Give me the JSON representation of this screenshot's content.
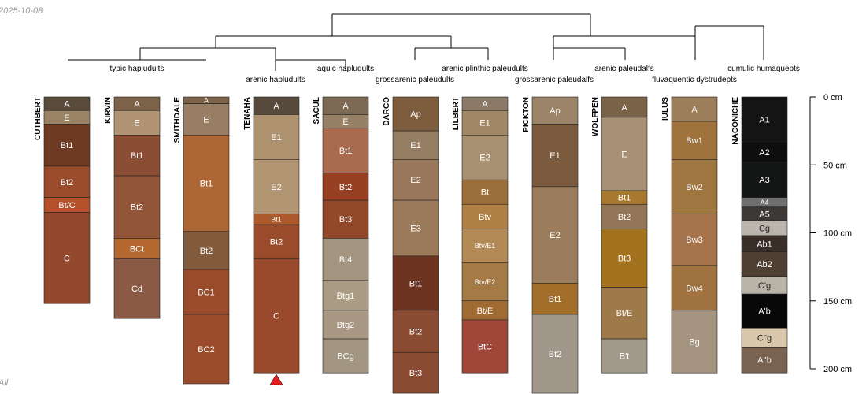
{
  "header": {
    "date": "2025-10-08",
    "corner_text": "All"
  },
  "colors": {
    "line": "#000000",
    "axis": "#000000",
    "marker": "#e41a1c"
  },
  "depth_axis": {
    "unit": "cm",
    "max": 205,
    "ticks": [
      {
        "value": 0,
        "label": "0 cm"
      },
      {
        "value": 50,
        "label": "50 cm"
      },
      {
        "value": 100,
        "label": "100 cm"
      },
      {
        "value": 150,
        "label": "150 cm"
      },
      {
        "value": 200,
        "label": "200 cm"
      }
    ]
  },
  "taxonomy_labels": [
    "typic hapludults",
    "arenic hapludults",
    "aquic hapludults",
    "grossarenic paleudults",
    "arenic plinthic paleudults",
    "grossarenic paleudalfs",
    "arenic paleudalfs",
    "fluvaquentic dystrudepts",
    "cumulic humaquepts"
  ],
  "profiles": [
    {
      "name": "CUTHBERT",
      "horizons": [
        {
          "name": "A",
          "top": 0,
          "bottom": 10,
          "color": "#5a4a3a"
        },
        {
          "name": "E",
          "top": 10,
          "bottom": 20,
          "color": "#9b8466"
        },
        {
          "name": "Bt1",
          "top": 20,
          "bottom": 51,
          "color": "#6f3a22"
        },
        {
          "name": "Bt2",
          "top": 51,
          "bottom": 74,
          "color": "#9a4b2b"
        },
        {
          "name": "Bt/C",
          "top": 74,
          "bottom": 85,
          "color": "#b5512b"
        },
        {
          "name": "C",
          "top": 85,
          "bottom": 152,
          "color": "#94482b"
        }
      ]
    },
    {
      "name": "KIRVIN",
      "horizons": [
        {
          "name": "A",
          "top": 0,
          "bottom": 10,
          "color": "#7b6249"
        },
        {
          "name": "E",
          "top": 10,
          "bottom": 28,
          "color": "#b09474"
        },
        {
          "name": "Bt1",
          "top": 28,
          "bottom": 58,
          "color": "#8b4d34"
        },
        {
          "name": "Bt2",
          "top": 58,
          "bottom": 104,
          "color": "#925538"
        },
        {
          "name": "BCt",
          "top": 104,
          "bottom": 119,
          "color": "#b4672f"
        },
        {
          "name": "Cd",
          "top": 119,
          "bottom": 163,
          "color": "#8a5a44"
        }
      ]
    },
    {
      "name": "SMITHDALE",
      "horizons": [
        {
          "name": "A",
          "top": 0,
          "bottom": 5,
          "color": "#7b6249"
        },
        {
          "name": "E",
          "top": 5,
          "bottom": 28,
          "color": "#987e62"
        },
        {
          "name": "Bt1",
          "top": 28,
          "bottom": 99,
          "color": "#ad6635"
        },
        {
          "name": "Bt2",
          "top": 99,
          "bottom": 127,
          "color": "#825a3c"
        },
        {
          "name": "BC1",
          "top": 127,
          "bottom": 160,
          "color": "#9a4b2b"
        },
        {
          "name": "BC2",
          "top": 160,
          "bottom": 211,
          "color": "#9b4c2c"
        }
      ]
    },
    {
      "name": "TENAHA",
      "horizons": [
        {
          "name": "A",
          "top": 0,
          "bottom": 13,
          "color": "#574a3d"
        },
        {
          "name": "E1",
          "top": 13,
          "bottom": 46,
          "color": "#ae9270"
        },
        {
          "name": "E2",
          "top": 46,
          "bottom": 86,
          "color": "#b29573"
        },
        {
          "name": "Bt1",
          "top": 86,
          "bottom": 94,
          "color": "#ac5a2b"
        },
        {
          "name": "Bt2",
          "top": 94,
          "bottom": 119,
          "color": "#9a4b2b"
        },
        {
          "name": "C",
          "top": 119,
          "bottom": 203,
          "color": "#9a4a2c"
        }
      ]
    },
    {
      "name": "SACUL",
      "horizons": [
        {
          "name": "A",
          "top": 0,
          "bottom": 13,
          "color": "#7b6953"
        },
        {
          "name": "E",
          "top": 13,
          "bottom": 23,
          "color": "#968066"
        },
        {
          "name": "Bt1",
          "top": 23,
          "bottom": 56,
          "color": "#a96b50"
        },
        {
          "name": "Bt2",
          "top": 56,
          "bottom": 76,
          "color": "#973f23"
        },
        {
          "name": "Bt3",
          "top": 76,
          "bottom": 104,
          "color": "#904828"
        },
        {
          "name": "Bt4",
          "top": 104,
          "bottom": 135,
          "color": "#a39580"
        },
        {
          "name": "Btg1",
          "top": 135,
          "bottom": 157,
          "color": "#ab9c85"
        },
        {
          "name": "Btg2",
          "top": 157,
          "bottom": 178,
          "color": "#a79783"
        },
        {
          "name": "BCg",
          "top": 178,
          "bottom": 203,
          "color": "#a29682"
        }
      ]
    },
    {
      "name": "DARCO",
      "horizons": [
        {
          "name": "Ap",
          "top": 0,
          "bottom": 25,
          "color": "#7e5d3e"
        },
        {
          "name": "E1",
          "top": 25,
          "bottom": 46,
          "color": "#957d63"
        },
        {
          "name": "E2",
          "top": 46,
          "bottom": 76,
          "color": "#98775a"
        },
        {
          "name": "E3",
          "top": 76,
          "bottom": 117,
          "color": "#9b7a5c"
        },
        {
          "name": "Bt1",
          "top": 117,
          "bottom": 157,
          "color": "#6d3421"
        },
        {
          "name": "Bt2",
          "top": 157,
          "bottom": 188,
          "color": "#8a4b33"
        },
        {
          "name": "Bt3",
          "top": 188,
          "bottom": 218,
          "color": "#8a4b33"
        }
      ]
    },
    {
      "name": "LILBERT",
      "horizons": [
        {
          "name": "A",
          "top": 0,
          "bottom": 10,
          "color": "#8a7a67"
        },
        {
          "name": "E1",
          "top": 10,
          "bottom": 28,
          "color": "#a28767"
        },
        {
          "name": "E2",
          "top": 28,
          "bottom": 61,
          "color": "#a89072"
        },
        {
          "name": "Bt",
          "top": 61,
          "bottom": 79,
          "color": "#9c6f3a"
        },
        {
          "name": "Btv",
          "top": 79,
          "bottom": 97,
          "color": "#ae8043"
        },
        {
          "name": "Btv/E1",
          "top": 97,
          "bottom": 122,
          "color": "#b38a56"
        },
        {
          "name": "Btv/E2",
          "top": 122,
          "bottom": 150,
          "color": "#a57a45"
        },
        {
          "name": "Bt/E",
          "top": 150,
          "bottom": 164,
          "color": "#a06a33"
        },
        {
          "name": "BtC",
          "top": 164,
          "bottom": 203,
          "color": "#a0473a"
        }
      ]
    },
    {
      "name": "PICKTON",
      "horizons": [
        {
          "name": "Ap",
          "top": 0,
          "bottom": 20,
          "color": "#9c8468"
        },
        {
          "name": "E1",
          "top": 20,
          "bottom": 66,
          "color": "#7b5a3e"
        },
        {
          "name": "E2",
          "top": 66,
          "bottom": 137,
          "color": "#9a7c5c"
        },
        {
          "name": "Bt1",
          "top": 137,
          "bottom": 160,
          "color": "#a26e2a"
        },
        {
          "name": "Bt2",
          "top": 160,
          "bottom": 218,
          "color": "#a0968a"
        }
      ]
    },
    {
      "name": "WOLFPEN",
      "horizons": [
        {
          "name": "A",
          "top": 0,
          "bottom": 15,
          "color": "#7a6246"
        },
        {
          "name": "E",
          "top": 15,
          "bottom": 69,
          "color": "#a89074"
        },
        {
          "name": "Bt1",
          "top": 69,
          "bottom": 79,
          "color": "#a7782f"
        },
        {
          "name": "Bt2",
          "top": 79,
          "bottom": 97,
          "color": "#937558"
        },
        {
          "name": "Bt3",
          "top": 97,
          "bottom": 140,
          "color": "#a2721f"
        },
        {
          "name": "Bt/E",
          "top": 140,
          "bottom": 178,
          "color": "#9e7a4a"
        },
        {
          "name": "B't",
          "top": 178,
          "bottom": 203,
          "color": "#a3998a"
        }
      ]
    },
    {
      "name": "IULUS",
      "horizons": [
        {
          "name": "A",
          "top": 0,
          "bottom": 18,
          "color": "#9c7e5a"
        },
        {
          "name": "Bw1",
          "top": 18,
          "bottom": 46,
          "color": "#a0723c"
        },
        {
          "name": "Bw2",
          "top": 46,
          "bottom": 86,
          "color": "#a07640"
        },
        {
          "name": "Bw3",
          "top": 86,
          "bottom": 124,
          "color": "#a6744c"
        },
        {
          "name": "Bw4",
          "top": 124,
          "bottom": 157,
          "color": "#a0723f"
        },
        {
          "name": "Bg",
          "top": 157,
          "bottom": 203,
          "color": "#a49480"
        }
      ]
    },
    {
      "name": "NACONICHE",
      "horizons": [
        {
          "name": "A1",
          "top": 0,
          "bottom": 33,
          "color": "#141414"
        },
        {
          "name": "A2",
          "top": 33,
          "bottom": 48,
          "color": "#0e0e0e"
        },
        {
          "name": "A3",
          "top": 48,
          "bottom": 74,
          "color": "#141616"
        },
        {
          "name": "A4",
          "top": 74,
          "bottom": 81,
          "color": "#6e6e6e"
        },
        {
          "name": "A5",
          "top": 81,
          "bottom": 91,
          "color": "#3c3836"
        },
        {
          "name": "Cg",
          "top": 91,
          "bottom": 102,
          "color": "#bab4ac"
        },
        {
          "name": "Ab1",
          "top": 102,
          "bottom": 114,
          "color": "#3a2e28"
        },
        {
          "name": "Ab2",
          "top": 114,
          "bottom": 132,
          "color": "#4e3f32"
        },
        {
          "name": "C'g",
          "top": 132,
          "bottom": 145,
          "color": "#bab4a8"
        },
        {
          "name": "A'b",
          "top": 145,
          "bottom": 170,
          "color": "#080808"
        },
        {
          "name": "C''g",
          "top": 170,
          "bottom": 184,
          "color": "#d8c7aa"
        },
        {
          "name": "A''b",
          "top": 184,
          "bottom": 203,
          "color": "#7a6250"
        }
      ]
    }
  ],
  "truncation_marker_profile": "TENAHA"
}
